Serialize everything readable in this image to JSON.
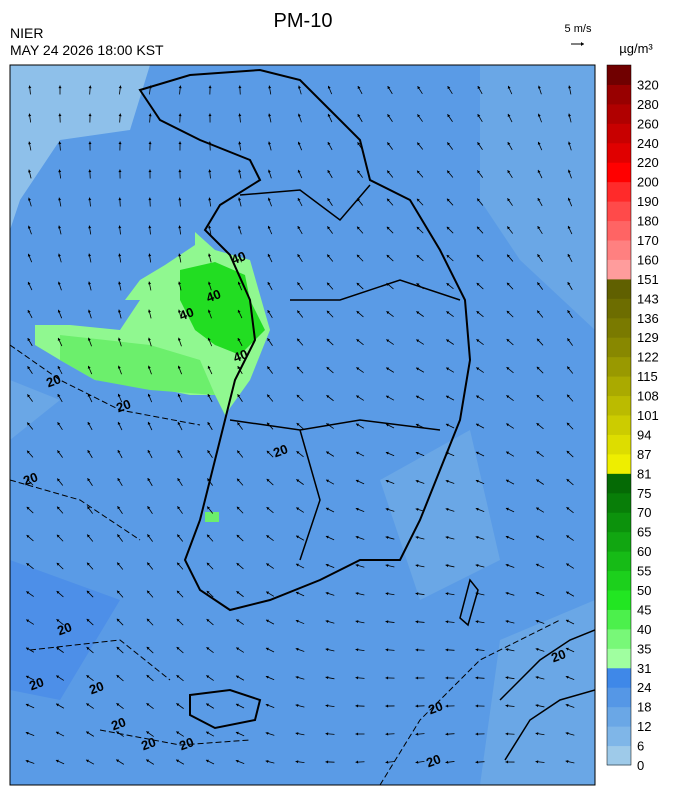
{
  "header": {
    "title": "PM-10",
    "source": "NIER",
    "datetime": "MAY 24 2026 18:00 KST",
    "wind_scale": "5 m/s",
    "unit": "µg/m³"
  },
  "colorbar": {
    "labels": [
      0,
      6,
      12,
      18,
      24,
      31,
      35,
      40,
      45,
      50,
      55,
      60,
      65,
      70,
      75,
      81,
      87,
      94,
      101,
      108,
      115,
      122,
      129,
      136,
      143,
      151,
      160,
      170,
      180,
      190,
      200,
      220,
      240,
      260,
      280,
      320
    ],
    "colors": [
      "#9ecae9",
      "#7fb6e8",
      "#6aa7e6",
      "#5597e6",
      "#3f88e8",
      "#a0ffa0",
      "#78f878",
      "#4cf04c",
      "#22e622",
      "#1cd01c",
      "#16bb16",
      "#11a611",
      "#0c920c",
      "#087e08",
      "#056a05",
      "#eeee00",
      "#dddd00",
      "#cccc00",
      "#bbbb00",
      "#aaaa00",
      "#999900",
      "#888800",
      "#7a7a00",
      "#6d6d00",
      "#606000",
      "#ff9c9c",
      "#ff8080",
      "#ff6464",
      "#ff4a4a",
      "#ff2a2a",
      "#ff0000",
      "#e00000",
      "#c80000",
      "#b00000",
      "#980000",
      "#700000"
    ]
  },
  "contour_labels": [
    "20",
    "20",
    "20",
    "20",
    "20",
    "20",
    "20",
    "20",
    "20",
    "20",
    "20",
    "20",
    "20",
    "40",
    "40",
    "40",
    "40"
  ]
}
